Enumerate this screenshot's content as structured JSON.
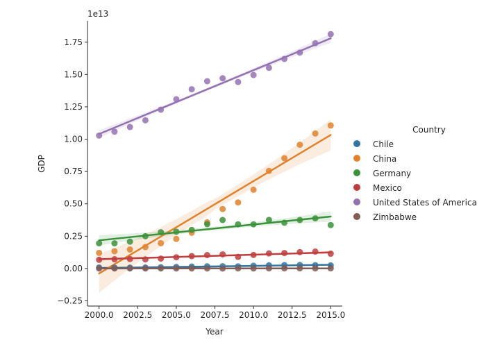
{
  "chart_data": {
    "type": "scatter",
    "xlabel": "Year",
    "ylabel": "GDP",
    "offset_label": "1e13",
    "xlim": [
      1999.25,
      2015.75
    ],
    "ylim": [
      -0.29,
      1.915
    ],
    "x_ticks": [
      2000.0,
      2002.5,
      2005.0,
      2007.5,
      2010.0,
      2012.5,
      2015.0
    ],
    "x_tick_labels": [
      "2000.0",
      "2002.5",
      "2005.0",
      "2007.5",
      "2010.0",
      "2012.5",
      "2015.0"
    ],
    "y_ticks": [
      -0.25,
      0.0,
      0.25,
      0.5,
      0.75,
      1.0,
      1.25,
      1.5,
      1.75
    ],
    "y_tick_labels": [
      "−0.25",
      "0.00",
      "0.25",
      "0.50",
      "0.75",
      "1.00",
      "1.25",
      "1.50",
      "1.75"
    ],
    "grid": false,
    "legend": {
      "title": "Country",
      "placement": "right"
    },
    "x": [
      2000,
      2001,
      2002,
      2003,
      2004,
      2005,
      2006,
      2007,
      2008,
      2009,
      2010,
      2011,
      2012,
      2013,
      2014,
      2015
    ],
    "series": [
      {
        "name": "Chile",
        "color": "#3274a1",
        "values": [
          0.0078,
          0.0071,
          0.0068,
          0.0076,
          0.01,
          0.0123,
          0.0155,
          0.0174,
          0.018,
          0.0172,
          0.0218,
          0.0252,
          0.0267,
          0.0278,
          0.026,
          0.0243
        ],
        "fit": [
          0.0045,
          0.029
        ],
        "band": [
          0.0035,
          0.003
        ]
      },
      {
        "name": "China",
        "color": "#e1812c",
        "values": [
          0.121,
          0.134,
          0.147,
          0.166,
          0.196,
          0.229,
          0.277,
          0.357,
          0.46,
          0.511,
          0.609,
          0.755,
          0.853,
          0.957,
          1.044,
          1.106
        ],
        "fit": [
          -0.038,
          1.033
        ],
        "band": [
          0.15,
          0.12
        ]
      },
      {
        "name": "Germany",
        "color": "#3a923a",
        "values": [
          0.195,
          0.195,
          0.208,
          0.25,
          0.281,
          0.285,
          0.299,
          0.343,
          0.375,
          0.342,
          0.342,
          0.376,
          0.354,
          0.375,
          0.388,
          0.336
        ],
        "fit": [
          0.218,
          0.402
        ],
        "band": [
          0.04,
          0.04
        ]
      },
      {
        "name": "Mexico",
        "color": "#c03d3e",
        "values": [
          0.068,
          0.072,
          0.074,
          0.071,
          0.077,
          0.087,
          0.096,
          0.104,
          0.11,
          0.09,
          0.105,
          0.117,
          0.12,
          0.127,
          0.131,
          0.115
        ],
        "fit": [
          0.072,
          0.125
        ],
        "band": [
          0.01,
          0.01
        ]
      },
      {
        "name": "United States of America",
        "color": "#9372b2",
        "values": [
          1.028,
          1.058,
          1.094,
          1.146,
          1.228,
          1.309,
          1.386,
          1.448,
          1.471,
          1.442,
          1.496,
          1.552,
          1.62,
          1.669,
          1.742,
          1.812
        ],
        "fit": [
          1.04,
          1.78
        ],
        "band": [
          0.03,
          0.035
        ]
      },
      {
        "name": "Zimbabwe",
        "color": "#845b53",
        "values": [
          0.00067,
          0.00068,
          0.00064,
          0.0006,
          0.00054,
          0.0005,
          0.00044,
          0.0004,
          0.00031,
          0.00083,
          0.00092,
          0.0011,
          0.00126,
          0.00134,
          0.00136,
          0.0014
        ],
        "fit": [
          0.0006,
          0.0013
        ],
        "band": [
          0.0008,
          0.0008
        ]
      }
    ]
  }
}
